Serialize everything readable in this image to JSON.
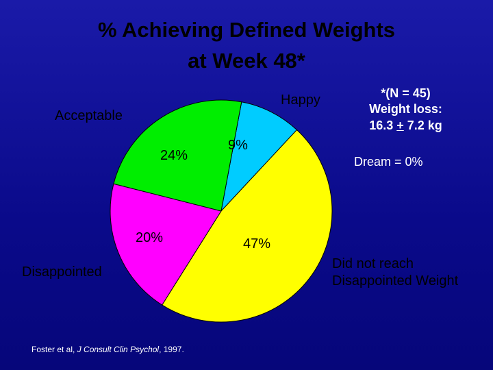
{
  "chart_data": {
    "type": "pie",
    "title": "% Achieving Defined Weights\nat Week 48*",
    "categories": [
      "Happy",
      "Did not reach\nDisappointed Weight",
      "Disappointed",
      "Acceptable"
    ],
    "values": [
      9,
      47,
      20,
      24
    ],
    "value_labels": [
      "9%",
      "47%",
      "20%",
      "24%"
    ],
    "colors": [
      "#00ccff",
      "#ffff00",
      "#ff00ff",
      "#00ee00"
    ],
    "note": [
      "*(N = 45)",
      "Weight loss:",
      [
        "16.3 ",
        "+",
        " 7.2 kg"
      ]
    ],
    "annotation": "Dream = 0%",
    "source": [
      "Foster et al, ",
      "J Consult Clin Psychol",
      ", 1997."
    ]
  }
}
